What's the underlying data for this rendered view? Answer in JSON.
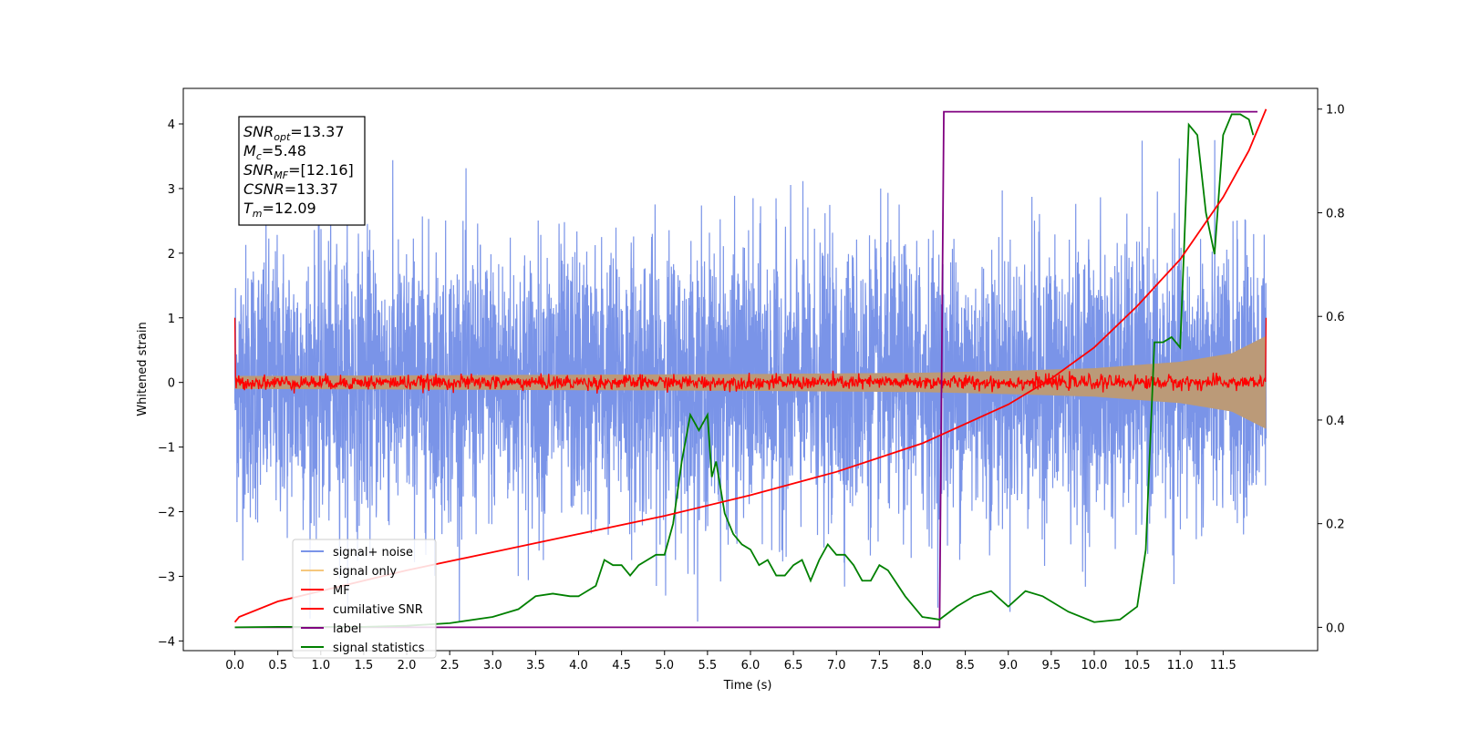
{
  "chart_data": {
    "type": "line",
    "title": "",
    "xlabel": "Time (s)",
    "ylabel": "Whitened strain",
    "ylabel_right": "",
    "xlim": [
      -0.6,
      12.6
    ],
    "ylim": [
      -4.15,
      4.55
    ],
    "ylim_right": [
      -0.045,
      1.04
    ],
    "grid": false,
    "legend_position": "lower-left",
    "x_ticks": [
      {
        "v": 0.0,
        "label": "0.0"
      },
      {
        "v": 0.5,
        "label": "0.5"
      },
      {
        "v": 1.0,
        "label": "1.0"
      },
      {
        "v": 1.5,
        "label": "1.5"
      },
      {
        "v": 2.0,
        "label": "2.0"
      },
      {
        "v": 2.5,
        "label": "2.5"
      },
      {
        "v": 3.0,
        "label": "3.0"
      },
      {
        "v": 3.5,
        "label": "3.5"
      },
      {
        "v": 4.0,
        "label": "4.0"
      },
      {
        "v": 4.5,
        "label": "4.5"
      },
      {
        "v": 5.0,
        "label": "5.0"
      },
      {
        "v": 5.5,
        "label": "5.5"
      },
      {
        "v": 6.0,
        "label": "6.0"
      },
      {
        "v": 6.5,
        "label": "6.5"
      },
      {
        "v": 7.0,
        "label": "7.0"
      },
      {
        "v": 7.5,
        "label": "7.5"
      },
      {
        "v": 8.0,
        "label": "8.0"
      },
      {
        "v": 8.5,
        "label": "8.5"
      },
      {
        "v": 9.0,
        "label": "9.0"
      },
      {
        "v": 9.5,
        "label": "9.5"
      },
      {
        "v": 10.0,
        "label": "10.0"
      },
      {
        "v": 10.5,
        "label": "10.5"
      },
      {
        "v": 11.0,
        "label": "11.0"
      },
      {
        "v": 11.5,
        "label": "11.5"
      }
    ],
    "y_ticks": [
      {
        "v": 4,
        "label": "4"
      },
      {
        "v": 3,
        "label": "3"
      },
      {
        "v": 2,
        "label": "2"
      },
      {
        "v": 1,
        "label": "1"
      },
      {
        "v": 0,
        "label": "0"
      },
      {
        "v": -1,
        "label": "−1"
      },
      {
        "v": -2,
        "label": "−2"
      },
      {
        "v": -3,
        "label": "−3"
      },
      {
        "v": -4,
        "label": "−4"
      }
    ],
    "y_ticks_right": [
      {
        "v": 1.0,
        "label": "1.0"
      },
      {
        "v": 0.8,
        "label": "0.8"
      },
      {
        "v": 0.6,
        "label": "0.6"
      },
      {
        "v": 0.4,
        "label": "0.4"
      },
      {
        "v": 0.2,
        "label": "0.2"
      },
      {
        "v": 0.0,
        "label": "0.0"
      }
    ],
    "series": [
      {
        "name": "signal+ noise",
        "color": "#7a94e8",
        "axis": "left",
        "kind": "noisy",
        "description": "dense whitened noise roughly spanning -2.5 to +2.5, peaks to about ±3.7",
        "t_range": [
          0.0,
          12.0
        ]
      },
      {
        "name": "signal only",
        "color": "#f5c77e",
        "axis": "left",
        "kind": "chirp-envelope",
        "envelope": [
          [
            0.0,
            0.1
          ],
          [
            2.0,
            0.11
          ],
          [
            4.0,
            0.12
          ],
          [
            6.0,
            0.13
          ],
          [
            8.0,
            0.15
          ],
          [
            9.0,
            0.18
          ],
          [
            10.0,
            0.22
          ],
          [
            11.0,
            0.32
          ],
          [
            11.6,
            0.45
          ],
          [
            12.0,
            0.72
          ]
        ]
      },
      {
        "name": "MF",
        "color": "#ff0000",
        "axis": "left",
        "kind": "noisy-small",
        "description": "matched filter output fluctuating about 0 with amplitude about 0.1; spike to 1.0 at t=0 and t=12"
      },
      {
        "name": "cumilative SNR",
        "color": "#ff0000",
        "axis": "right",
        "points": [
          [
            0.0,
            0.01
          ],
          [
            0.05,
            0.02
          ],
          [
            0.5,
            0.05
          ],
          [
            1.0,
            0.07
          ],
          [
            2.0,
            0.11
          ],
          [
            3.0,
            0.145
          ],
          [
            4.0,
            0.18
          ],
          [
            5.0,
            0.215
          ],
          [
            6.0,
            0.255
          ],
          [
            7.0,
            0.3
          ],
          [
            8.0,
            0.355
          ],
          [
            9.0,
            0.43
          ],
          [
            9.5,
            0.48
          ],
          [
            10.0,
            0.54
          ],
          [
            10.5,
            0.62
          ],
          [
            11.0,
            0.71
          ],
          [
            11.5,
            0.83
          ],
          [
            11.8,
            0.92
          ],
          [
            12.0,
            1.0
          ]
        ]
      },
      {
        "name": "label",
        "color": "#800080",
        "axis": "right",
        "points": [
          [
            0.0,
            0.0
          ],
          [
            8.2,
            0.0
          ],
          [
            8.25,
            0.995
          ],
          [
            11.9,
            0.995
          ],
          [
            11.9,
            0.995
          ]
        ]
      },
      {
        "name": "signal statistics",
        "color": "#008000",
        "axis": "right",
        "points": [
          [
            0.0,
            0.0
          ],
          [
            0.5,
            0.001
          ],
          [
            1.0,
            0.001
          ],
          [
            1.5,
            0.001
          ],
          [
            2.0,
            0.003
          ],
          [
            2.5,
            0.008
          ],
          [
            3.0,
            0.02
          ],
          [
            3.3,
            0.035
          ],
          [
            3.5,
            0.06
          ],
          [
            3.7,
            0.065
          ],
          [
            3.9,
            0.06
          ],
          [
            4.0,
            0.06
          ],
          [
            4.2,
            0.08
          ],
          [
            4.3,
            0.13
          ],
          [
            4.4,
            0.12
          ],
          [
            4.5,
            0.12
          ],
          [
            4.6,
            0.1
          ],
          [
            4.7,
            0.12
          ],
          [
            4.8,
            0.13
          ],
          [
            4.9,
            0.14
          ],
          [
            5.0,
            0.14
          ],
          [
            5.1,
            0.2
          ],
          [
            5.2,
            0.32
          ],
          [
            5.3,
            0.41
          ],
          [
            5.4,
            0.38
          ],
          [
            5.5,
            0.41
          ],
          [
            5.55,
            0.29
          ],
          [
            5.6,
            0.32
          ],
          [
            5.7,
            0.22
          ],
          [
            5.8,
            0.18
          ],
          [
            5.9,
            0.16
          ],
          [
            6.0,
            0.15
          ],
          [
            6.1,
            0.12
          ],
          [
            6.2,
            0.13
          ],
          [
            6.3,
            0.1
          ],
          [
            6.4,
            0.1
          ],
          [
            6.5,
            0.12
          ],
          [
            6.6,
            0.13
          ],
          [
            6.7,
            0.09
          ],
          [
            6.8,
            0.13
          ],
          [
            6.9,
            0.16
          ],
          [
            7.0,
            0.14
          ],
          [
            7.1,
            0.14
          ],
          [
            7.2,
            0.12
          ],
          [
            7.3,
            0.09
          ],
          [
            7.4,
            0.09
          ],
          [
            7.5,
            0.12
          ],
          [
            7.6,
            0.11
          ],
          [
            7.8,
            0.06
          ],
          [
            8.0,
            0.02
          ],
          [
            8.2,
            0.015
          ],
          [
            8.4,
            0.04
          ],
          [
            8.6,
            0.06
          ],
          [
            8.8,
            0.07
          ],
          [
            9.0,
            0.04
          ],
          [
            9.2,
            0.07
          ],
          [
            9.4,
            0.06
          ],
          [
            9.5,
            0.05
          ],
          [
            9.7,
            0.03
          ],
          [
            10.0,
            0.01
          ],
          [
            10.3,
            0.015
          ],
          [
            10.5,
            0.04
          ],
          [
            10.6,
            0.15
          ],
          [
            10.7,
            0.55
          ],
          [
            10.8,
            0.55
          ],
          [
            10.9,
            0.56
          ],
          [
            11.0,
            0.54
          ],
          [
            11.05,
            0.75
          ],
          [
            11.1,
            0.97
          ],
          [
            11.2,
            0.95
          ],
          [
            11.3,
            0.8
          ],
          [
            11.4,
            0.72
          ],
          [
            11.5,
            0.95
          ],
          [
            11.6,
            0.99
          ],
          [
            11.7,
            0.99
          ],
          [
            11.8,
            0.98
          ],
          [
            11.85,
            0.95
          ]
        ]
      }
    ],
    "annotation": {
      "lines": [
        {
          "symbol": "SNR",
          "sub": "opt",
          "text": "=13.37"
        },
        {
          "symbol": "M",
          "sub": "c",
          "text": "=5.48"
        },
        {
          "symbol": "SNR",
          "sub": "MF",
          "text": "=[12.16]"
        },
        {
          "symbol": "CSNR",
          "sub": "",
          "text": "=13.37"
        },
        {
          "symbol": "T",
          "sub": "m",
          "text": "=12.09"
        }
      ]
    }
  }
}
